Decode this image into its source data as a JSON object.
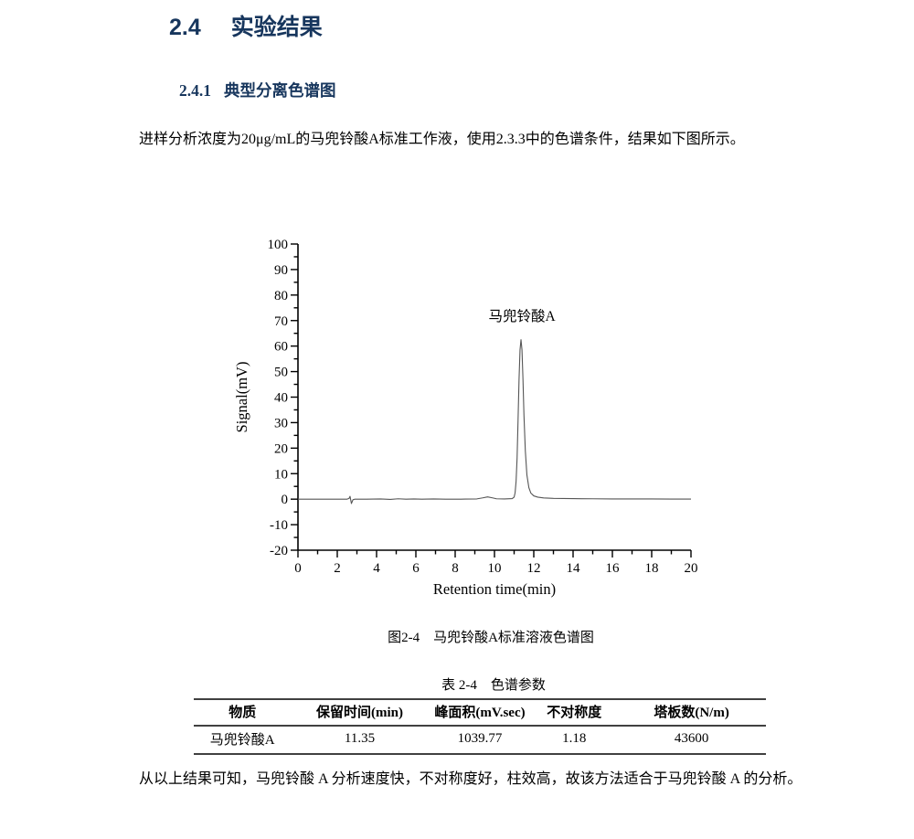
{
  "colors": {
    "heading": "#17365D",
    "chart_line": "#555555",
    "axis": "#000000",
    "table_rule": "#404040"
  },
  "section_heading": {
    "number": "2.4",
    "title": "实验结果"
  },
  "subsection_heading": {
    "number": "2.4.1",
    "title": "典型分离色谱图"
  },
  "paragraph1": "进样分析浓度为20μg/mL的马兜铃酸A标准工作液，使用2.3.3中的色谱条件，结果如下图所示。",
  "figure_caption": "图2-4　马兜铃酸A标准溶液色谱图",
  "table_caption": "表 2-4　色谱参数",
  "paragraph2": "从以上结果可知，马兜铃酸 A 分析速度快，不对称度好，柱效高，故该方法适合于马兜铃酸 A 的分析。",
  "chart_data": {
    "type": "line",
    "title": "",
    "xlabel": "Retention time(min)",
    "ylabel": "Signal(mV)",
    "xlim": [
      0,
      20
    ],
    "ylim": [
      -20,
      100
    ],
    "x_major_step": 2,
    "x_minor_step": 1,
    "y_major_step": 10,
    "y_minor_step": 5,
    "grid": false,
    "peak_annotation": {
      "label": "马兜铃酸A",
      "x": 11.4,
      "y": 70
    },
    "peak_retention_time_min": 11.35,
    "peak_height_mV": 62.5,
    "series": [
      {
        "points": [
          [
            0,
            0
          ],
          [
            1,
            0
          ],
          [
            2,
            0
          ],
          [
            2.5,
            0
          ],
          [
            2.6,
            0.3
          ],
          [
            2.65,
            1.1
          ],
          [
            2.72,
            -1.7
          ],
          [
            2.8,
            -0.2
          ],
          [
            2.9,
            0
          ],
          [
            3.5,
            0
          ],
          [
            4.2,
            0.1
          ],
          [
            4.7,
            -0.1
          ],
          [
            5.1,
            0.15
          ],
          [
            5.5,
            0
          ],
          [
            5.9,
            0.1
          ],
          [
            6.3,
            0
          ],
          [
            6.9,
            0.08
          ],
          [
            7.5,
            0
          ],
          [
            8.3,
            0
          ],
          [
            9.1,
            0.1
          ],
          [
            9.4,
            0.5
          ],
          [
            9.65,
            0.9
          ],
          [
            9.9,
            0.5
          ],
          [
            10.1,
            0.15
          ],
          [
            10.5,
            0.1
          ],
          [
            10.9,
            0.2
          ],
          [
            11.0,
            0.8
          ],
          [
            11.05,
            2.5
          ],
          [
            11.1,
            7
          ],
          [
            11.15,
            16
          ],
          [
            11.2,
            31
          ],
          [
            11.25,
            47
          ],
          [
            11.3,
            58.5
          ],
          [
            11.35,
            62.5
          ],
          [
            11.4,
            58.5
          ],
          [
            11.45,
            47
          ],
          [
            11.5,
            33
          ],
          [
            11.57,
            19
          ],
          [
            11.65,
            9.5
          ],
          [
            11.75,
            4.5
          ],
          [
            11.85,
            2.4
          ],
          [
            12.0,
            1.3
          ],
          [
            12.2,
            0.8
          ],
          [
            12.5,
            0.5
          ],
          [
            13.0,
            0.3
          ],
          [
            14,
            0.2
          ],
          [
            15,
            0.15
          ],
          [
            16,
            0.1
          ],
          [
            17,
            0.1
          ],
          [
            18,
            0.08
          ],
          [
            19,
            0.05
          ],
          [
            20,
            0.05
          ]
        ]
      }
    ]
  },
  "table": {
    "headers": [
      "物质",
      "保留时间(min)",
      "峰面积(mV.sec)",
      "不对称度",
      "塔板数(N/m)"
    ],
    "rows": [
      [
        "马兜铃酸A",
        "11.35",
        "1039.77",
        "1.18",
        "43600"
      ]
    ]
  }
}
